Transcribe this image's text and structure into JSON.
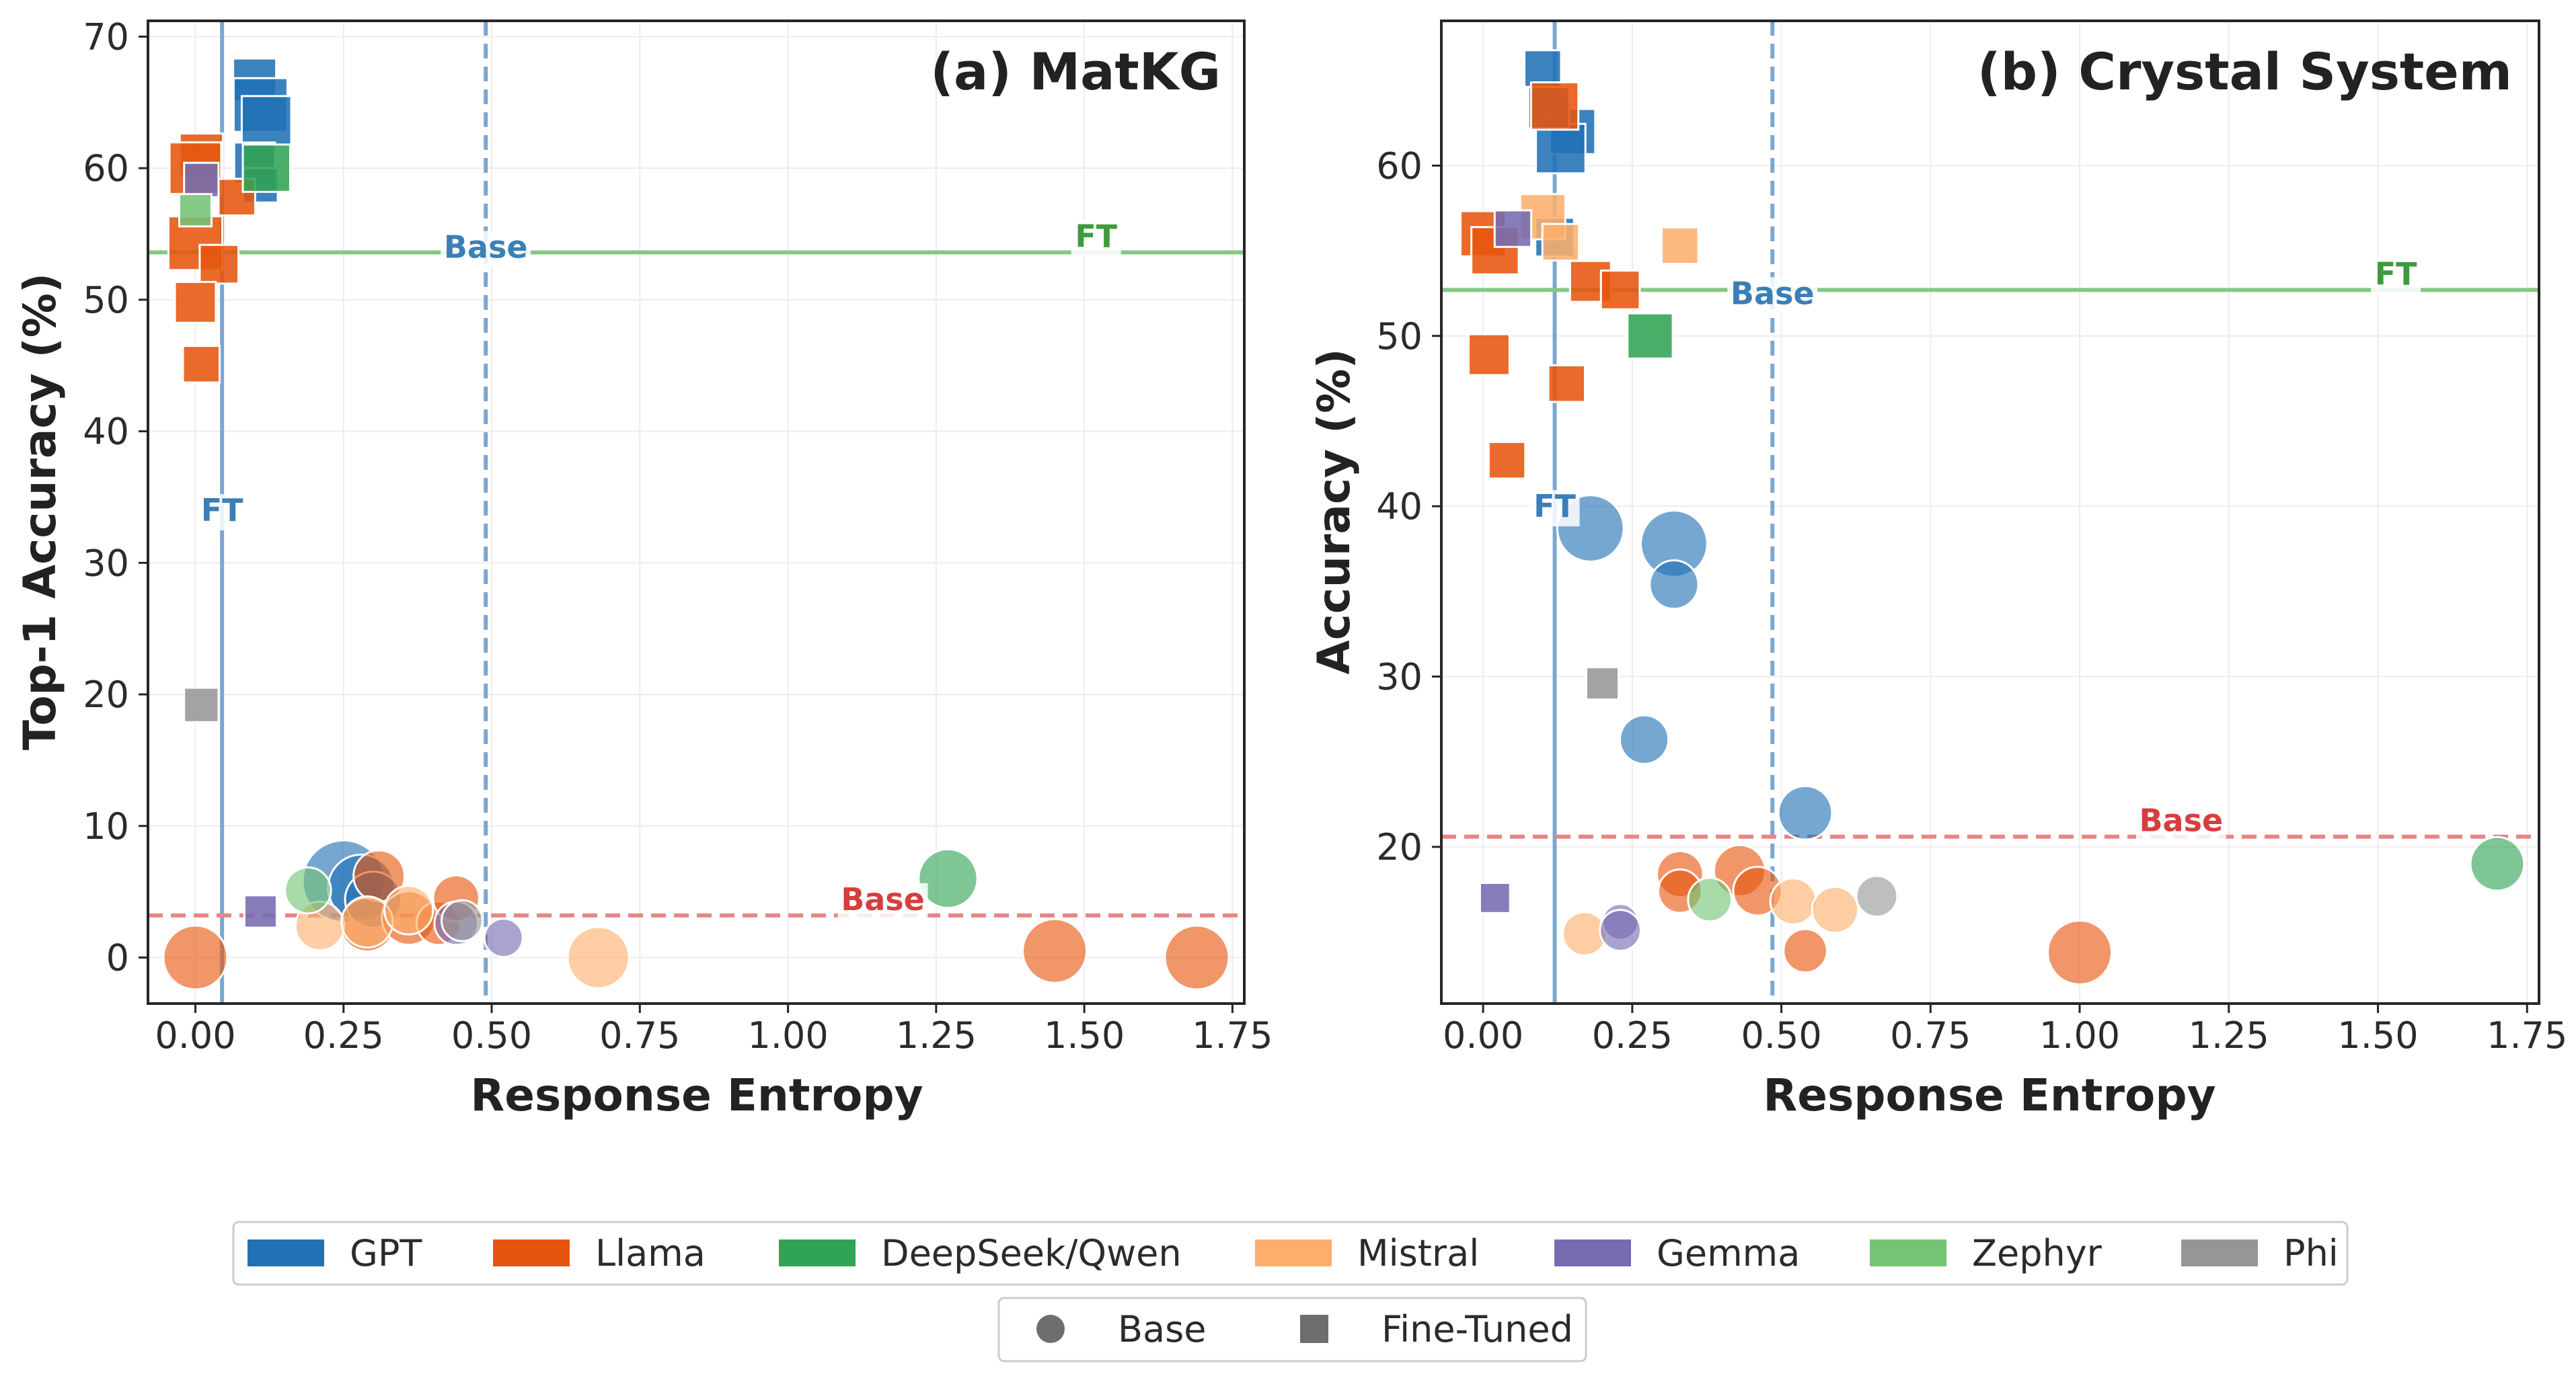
{
  "legend_groups": [
    {
      "label": "GPT",
      "color": "#2171b5"
    },
    {
      "label": "Llama",
      "color": "#e6550d"
    },
    {
      "label": "DeepSeek/Qwen",
      "color": "#31a354"
    },
    {
      "label": "Mistral",
      "color": "#fdae6b"
    },
    {
      "label": "Gemma",
      "color": "#756bb1"
    },
    {
      "label": "Zephyr",
      "color": "#74c476"
    },
    {
      "label": "Phi",
      "color": "#969696"
    }
  ],
  "legend_markers": [
    {
      "label": "Base",
      "shape": "circle"
    },
    {
      "label": "Fine-Tuned",
      "shape": "square"
    }
  ],
  "chart_data": [
    {
      "type": "scatter",
      "title": "(a)  MatKG",
      "xlabel": "Response Entropy",
      "ylabel": "Top-1 Accuracy (%)",
      "xlim": [
        -0.08,
        1.77
      ],
      "ylim": [
        -3.5,
        71.2
      ],
      "xticks": [
        0.0,
        0.25,
        0.5,
        0.75,
        1.0,
        1.25,
        1.5,
        1.75
      ],
      "xtick_labels": [
        "0.00",
        "0.25",
        "0.50",
        "0.75",
        "1.00",
        "1.25",
        "1.50",
        "1.75"
      ],
      "yticks": [
        0,
        10,
        20,
        30,
        40,
        50,
        60,
        70
      ],
      "ytick_labels": [
        "0",
        "10",
        "20",
        "30",
        "40",
        "50",
        "60",
        "70"
      ],
      "grid": true,
      "ref_lines": [
        {
          "orientation": "vertical",
          "value": 0.045,
          "style": "solid",
          "color": "#7ba7d0",
          "label": "FT",
          "label_at": 34
        },
        {
          "orientation": "vertical",
          "value": 0.49,
          "style": "dashed",
          "color": "#7ba7d0",
          "label": "Base",
          "label_at": 54
        },
        {
          "orientation": "horizontal",
          "value": 53.6,
          "style": "solid",
          "color": "#85c785",
          "label": "FT",
          "label_at": 1.52,
          "label_color": "#3d9b3d"
        },
        {
          "orientation": "horizontal",
          "value": 3.2,
          "style": "dashed",
          "color": "#e88585",
          "label": "Base",
          "label_at": 1.16,
          "label_color": "#d63e3e"
        }
      ],
      "series": [
        {
          "name": "GPT",
          "color": "#2171b5",
          "points": [
            {
              "x": 0.1,
              "y": 66.7,
              "m": "s",
              "s": 1.0
            },
            {
              "x": 0.11,
              "y": 64.8,
              "m": "s",
              "s": 1.25
            },
            {
              "x": 0.12,
              "y": 63.6,
              "m": "s",
              "s": 1.15
            },
            {
              "x": 0.1,
              "y": 60.4,
              "m": "s",
              "s": 0.95
            },
            {
              "x": 0.11,
              "y": 58.7,
              "m": "s",
              "s": 0.8
            },
            {
              "x": 0.25,
              "y": 5.8,
              "m": "c",
              "s": 1.6
            },
            {
              "x": 0.28,
              "y": 5.3,
              "m": "c",
              "s": 1.3
            },
            {
              "x": 0.3,
              "y": 4.4,
              "m": "c",
              "s": 1.1
            }
          ]
        },
        {
          "name": "Llama",
          "color": "#e6550d",
          "points": [
            {
              "x": 0.01,
              "y": 61.0,
              "m": "s",
              "s": 1.0
            },
            {
              "x": 0.0,
              "y": 60.0,
              "m": "s",
              "s": 1.2
            },
            {
              "x": 0.07,
              "y": 57.8,
              "m": "s",
              "s": 0.85
            },
            {
              "x": 0.0,
              "y": 54.3,
              "m": "s",
              "s": 1.25
            },
            {
              "x": 0.04,
              "y": 52.7,
              "m": "s",
              "s": 0.9
            },
            {
              "x": 0.0,
              "y": 49.8,
              "m": "s",
              "s": 0.95
            },
            {
              "x": 0.01,
              "y": 45.1,
              "m": "s",
              "s": 0.85
            },
            {
              "x": 0.0,
              "y": 0.0,
              "m": "c",
              "s": 1.25
            },
            {
              "x": 0.31,
              "y": 6.2,
              "m": "c",
              "s": 1.0
            },
            {
              "x": 0.29,
              "y": 2.5,
              "m": "c",
              "s": 1.05
            },
            {
              "x": 0.36,
              "y": 3.0,
              "m": "c",
              "s": 1.05
            },
            {
              "x": 0.41,
              "y": 2.6,
              "m": "c",
              "s": 0.85
            },
            {
              "x": 0.44,
              "y": 4.5,
              "m": "c",
              "s": 0.9
            },
            {
              "x": 1.45,
              "y": 0.5,
              "m": "c",
              "s": 1.25
            },
            {
              "x": 1.69,
              "y": 0.0,
              "m": "c",
              "s": 1.25
            }
          ]
        },
        {
          "name": "DeepSeek/Qwen",
          "color": "#31a354",
          "points": [
            {
              "x": 0.12,
              "y": 60.0,
              "m": "s",
              "s": 1.1
            },
            {
              "x": 1.27,
              "y": 6.0,
              "m": "c",
              "s": 1.15
            }
          ]
        },
        {
          "name": "Mistral",
          "color": "#fdae6b",
          "points": [
            {
              "x": 0.21,
              "y": 2.4,
              "m": "c",
              "s": 0.95
            },
            {
              "x": 0.29,
              "y": 2.7,
              "m": "c",
              "s": 1.0
            },
            {
              "x": 0.36,
              "y": 3.6,
              "m": "c",
              "s": 0.95
            },
            {
              "x": 0.68,
              "y": 0.0,
              "m": "c",
              "s": 1.2
            }
          ]
        },
        {
          "name": "Gemma",
          "color": "#756bb1",
          "points": [
            {
              "x": 0.01,
              "y": 59.1,
              "m": "s",
              "s": 0.8
            },
            {
              "x": 0.11,
              "y": 3.5,
              "m": "s",
              "s": 0.75
            },
            {
              "x": 0.44,
              "y": 2.6,
              "m": "c",
              "s": 0.85
            },
            {
              "x": 0.52,
              "y": 1.5,
              "m": "c",
              "s": 0.75
            }
          ]
        },
        {
          "name": "Zephyr",
          "color": "#74c476",
          "points": [
            {
              "x": 0.0,
              "y": 56.8,
              "m": "s",
              "s": 0.75
            },
            {
              "x": 0.19,
              "y": 5.1,
              "m": "c",
              "s": 0.9
            }
          ]
        },
        {
          "name": "Phi",
          "color": "#969696",
          "points": [
            {
              "x": 0.01,
              "y": 19.2,
              "m": "s",
              "s": 0.8
            },
            {
              "x": 0.45,
              "y": 2.8,
              "m": "c",
              "s": 0.8
            }
          ]
        }
      ]
    },
    {
      "type": "scatter",
      "title": "(b)  Crystal System",
      "xlabel": "Response Entropy",
      "ylabel": "Accuracy (%)",
      "xlim": [
        -0.07,
        1.77
      ],
      "ylim": [
        10.8,
        68.5
      ],
      "xticks": [
        0.0,
        0.25,
        0.5,
        0.75,
        1.0,
        1.25,
        1.5,
        1.75
      ],
      "xtick_labels": [
        "0.00",
        "0.25",
        "0.50",
        "0.75",
        "1.00",
        "1.25",
        "1.50",
        "1.75"
      ],
      "yticks": [
        20,
        30,
        40,
        50,
        60
      ],
      "ytick_labels": [
        "20",
        "30",
        "40",
        "50",
        "60"
      ],
      "grid": true,
      "ref_lines": [
        {
          "orientation": "vertical",
          "value": 0.12,
          "style": "solid",
          "color": "#7ba7d0",
          "label": "FT",
          "label_at": 40
        },
        {
          "orientation": "vertical",
          "value": 0.485,
          "style": "dashed",
          "color": "#7ba7d0",
          "label": "Base",
          "label_at": 52.5
        },
        {
          "orientation": "horizontal",
          "value": 52.7,
          "style": "solid",
          "color": "#85c785",
          "label": "FT",
          "label_at": 1.53,
          "label_color": "#3d9b3d"
        },
        {
          "orientation": "horizontal",
          "value": 20.6,
          "style": "dashed",
          "color": "#e88585",
          "label": "Base",
          "label_at": 1.17,
          "label_color": "#d63e3e"
        }
      ],
      "series": [
        {
          "name": "GPT",
          "color": "#2171b5",
          "points": [
            {
              "x": 0.1,
              "y": 65.7,
              "m": "s",
              "s": 0.85
            },
            {
              "x": 0.15,
              "y": 62.0,
              "m": "s",
              "s": 1.05
            },
            {
              "x": 0.13,
              "y": 61.0,
              "m": "s",
              "s": 1.15
            },
            {
              "x": 0.11,
              "y": 63.4,
              "m": "s",
              "s": 0.95
            },
            {
              "x": 0.12,
              "y": 55.8,
              "m": "s",
              "s": 0.9
            },
            {
              "x": 0.18,
              "y": 38.7,
              "m": "c",
              "s": 1.3
            },
            {
              "x": 0.32,
              "y": 37.8,
              "m": "c",
              "s": 1.3
            },
            {
              "x": 0.32,
              "y": 35.4,
              "m": "c",
              "s": 0.95
            },
            {
              "x": 0.27,
              "y": 26.3,
              "m": "c",
              "s": 0.95
            },
            {
              "x": 0.54,
              "y": 22.0,
              "m": "c",
              "s": 1.05
            }
          ]
        },
        {
          "name": "Llama",
          "color": "#e6550d",
          "points": [
            {
              "x": 0.12,
              "y": 63.5,
              "m": "s",
              "s": 1.1
            },
            {
              "x": 0.0,
              "y": 56.0,
              "m": "s",
              "s": 1.05
            },
            {
              "x": 0.02,
              "y": 55.0,
              "m": "s",
              "s": 1.1
            },
            {
              "x": 0.18,
              "y": 53.2,
              "m": "s",
              "s": 0.95
            },
            {
              "x": 0.23,
              "y": 52.7,
              "m": "s",
              "s": 0.9
            },
            {
              "x": 0.01,
              "y": 48.9,
              "m": "s",
              "s": 0.95
            },
            {
              "x": 0.14,
              "y": 47.2,
              "m": "s",
              "s": 0.85
            },
            {
              "x": 0.04,
              "y": 42.7,
              "m": "s",
              "s": 0.85
            },
            {
              "x": 0.33,
              "y": 18.4,
              "m": "c",
              "s": 0.9
            },
            {
              "x": 0.33,
              "y": 17.4,
              "m": "c",
              "s": 0.85
            },
            {
              "x": 0.43,
              "y": 18.6,
              "m": "c",
              "s": 1.0
            },
            {
              "x": 0.46,
              "y": 17.4,
              "m": "c",
              "s": 0.95
            },
            {
              "x": 0.54,
              "y": 13.9,
              "m": "c",
              "s": 0.85
            },
            {
              "x": 1.0,
              "y": 13.8,
              "m": "c",
              "s": 1.25
            }
          ]
        },
        {
          "name": "DeepSeek/Qwen",
          "color": "#31a354",
          "points": [
            {
              "x": 0.28,
              "y": 50.0,
              "m": "s",
              "s": 1.05
            },
            {
              "x": 1.7,
              "y": 19.0,
              "m": "c",
              "s": 1.05
            }
          ]
        },
        {
          "name": "Mistral",
          "color": "#fdae6b",
          "points": [
            {
              "x": 0.1,
              "y": 57.0,
              "m": "s",
              "s": 1.05
            },
            {
              "x": 0.13,
              "y": 55.5,
              "m": "s",
              "s": 0.85
            },
            {
              "x": 0.33,
              "y": 55.3,
              "m": "s",
              "s": 0.85
            },
            {
              "x": 0.17,
              "y": 14.9,
              "m": "c",
              "s": 0.85
            },
            {
              "x": 0.52,
              "y": 16.8,
              "m": "c",
              "s": 0.9
            },
            {
              "x": 0.59,
              "y": 16.3,
              "m": "c",
              "s": 0.9
            }
          ]
        },
        {
          "name": "Gemma",
          "color": "#756bb1",
          "points": [
            {
              "x": 0.05,
              "y": 56.3,
              "m": "s",
              "s": 0.85
            },
            {
              "x": 0.02,
              "y": 17.0,
              "m": "s",
              "s": 0.7
            },
            {
              "x": 0.23,
              "y": 15.6,
              "m": "c",
              "s": 0.7
            },
            {
              "x": 0.23,
              "y": 15.1,
              "m": "c",
              "s": 0.8
            }
          ]
        },
        {
          "name": "Zephyr",
          "color": "#74c476",
          "points": [
            {
              "x": 0.38,
              "y": 16.9,
              "m": "c",
              "s": 0.85
            }
          ]
        },
        {
          "name": "Phi",
          "color": "#969696",
          "points": [
            {
              "x": 0.2,
              "y": 29.6,
              "m": "s",
              "s": 0.75
            },
            {
              "x": 0.66,
              "y": 17.1,
              "m": "c",
              "s": 0.8
            }
          ]
        }
      ]
    }
  ]
}
